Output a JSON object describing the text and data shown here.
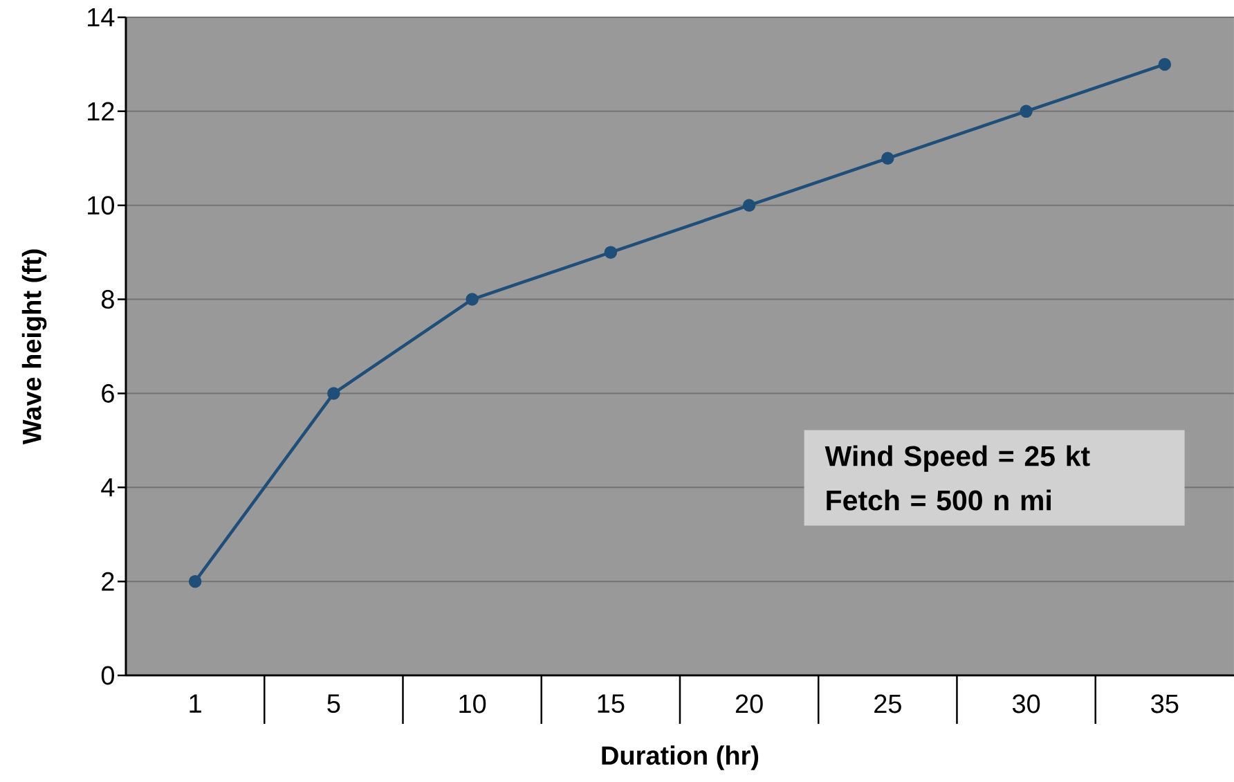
{
  "chart_data": {
    "type": "line",
    "xlabel": "Duration (hr)",
    "ylabel": "Wave height (ft)",
    "categories": [
      "1",
      "5",
      "10",
      "15",
      "20",
      "25",
      "30",
      "35"
    ],
    "series": [
      {
        "color": "#1f4e79",
        "values": [
          2,
          6,
          8,
          9,
          10,
          11,
          12,
          13
        ]
      }
    ],
    "ylim": [
      0,
      14
    ],
    "yticks": [
      0,
      2,
      4,
      6,
      8,
      10,
      12,
      14
    ],
    "grid": "y",
    "marker": "circle",
    "line_style": "solid",
    "annotations": [
      "Wind Speed = 25 kt",
      "Fetch = 500 n mi"
    ]
  }
}
